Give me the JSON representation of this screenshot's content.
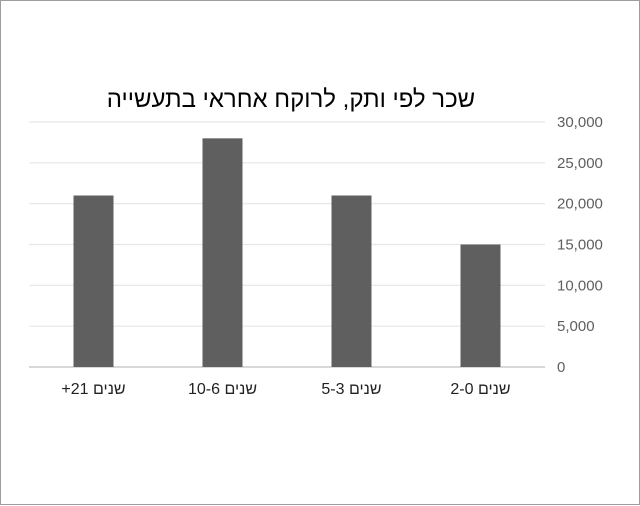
{
  "chart_data": {
    "type": "bar",
    "title": "שכר לפי ותק, לרוקח אחראי בתעשייה",
    "xlabel": "",
    "ylabel": "",
    "categories": [
      "2-0 שנים",
      "5-3 שנים",
      "10-6 שנים",
      "+21 שנים"
    ],
    "values": [
      15000,
      21000,
      28000,
      21000
    ],
    "ylim": [
      0,
      30000
    ],
    "yticks": [
      0,
      5000,
      10000,
      15000,
      20000,
      25000,
      30000
    ],
    "ytick_labels": [
      "0",
      "5,000",
      "10,000",
      "15,000",
      "20,000",
      "25,000",
      "30,000"
    ],
    "direction": "rtl",
    "y_axis_side": "right",
    "grid": true,
    "legend": "none",
    "colors": {
      "bar": "#5f5f5f",
      "grid": "#e6e6e6",
      "baseline": "#cccccc"
    }
  }
}
